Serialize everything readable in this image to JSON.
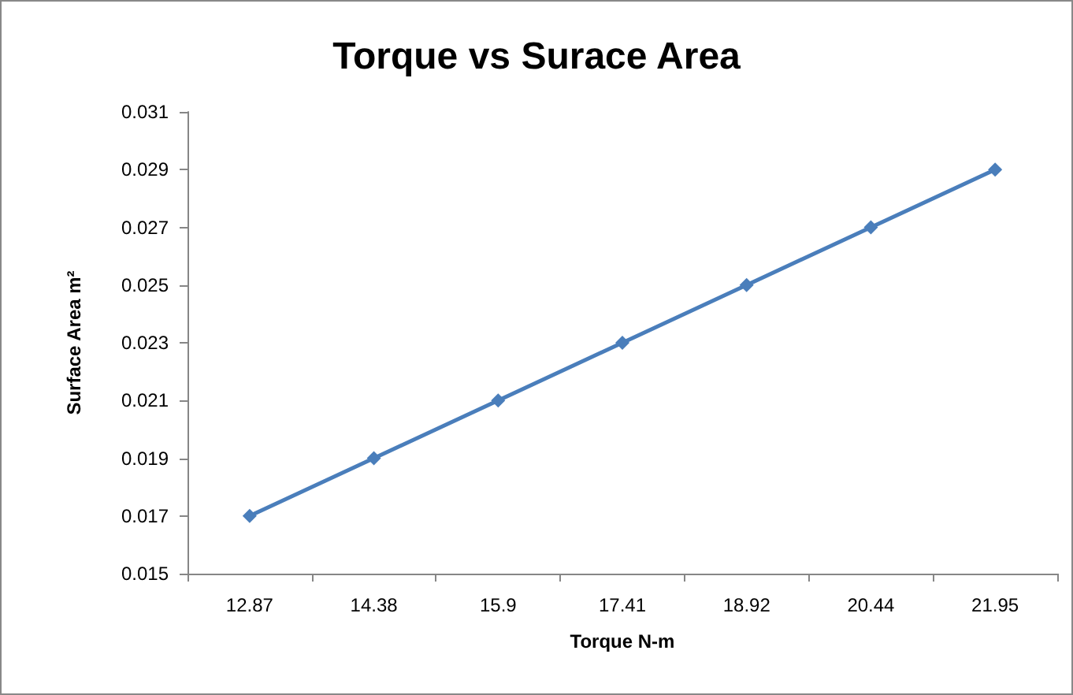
{
  "chart_data": {
    "type": "line",
    "title": "Torque vs Surace Area",
    "xlabel": "Torque N-m",
    "ylabel": "Surface Area m²",
    "categories": [
      "12.87",
      "14.38",
      "15.9",
      "17.41",
      "18.92",
      "20.44",
      "21.95"
    ],
    "series": [
      {
        "color": "#4a7ebb",
        "values": [
          0.017,
          0.019,
          0.021,
          0.023,
          0.025,
          0.027,
          0.029
        ]
      }
    ],
    "ylim": [
      0.015,
      0.031
    ],
    "yticks": [
      0.015,
      0.017,
      0.019,
      0.021,
      0.023,
      0.025,
      0.027,
      0.029,
      0.031
    ],
    "grid": false,
    "marker": "diamond",
    "line_style": "solid"
  }
}
